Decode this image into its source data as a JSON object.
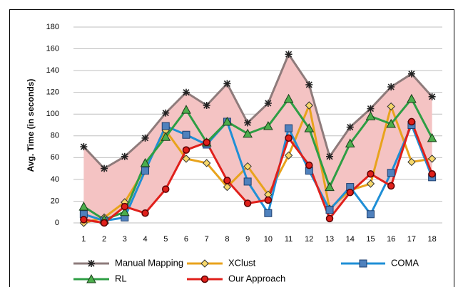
{
  "chart_data": {
    "type": "line",
    "y_label": "Avg. Time (in seconds)",
    "categories": [
      "1",
      "2",
      "3",
      "4",
      "5",
      "6",
      "7",
      "8",
      "9",
      "10",
      "11",
      "12",
      "13",
      "14",
      "15",
      "16",
      "17",
      "18"
    ],
    "ylim": [
      0,
      180
    ],
    "yticks": [
      0,
      20,
      40,
      60,
      80,
      100,
      120,
      140,
      160,
      180
    ],
    "grid": true,
    "band_fill": "#f4c3c3",
    "series": [
      {
        "name": "Manual Mapping",
        "color": "#8e7b7b",
        "marker": "star",
        "marker_fill": "#222222",
        "values": [
          70,
          50,
          61,
          78,
          101,
          120,
          108,
          128,
          92,
          110,
          155,
          127,
          61,
          88,
          105,
          125,
          137,
          116
        ]
      },
      {
        "name": "XClust",
        "color": "#e8a31c",
        "marker": "diamond",
        "marker_fill": "#f6d86a",
        "values": [
          0,
          5,
          19,
          50,
          85,
          59,
          55,
          33,
          52,
          26,
          62,
          108,
          13,
          30,
          36,
          107,
          56,
          59
        ]
      },
      {
        "name": "COMA",
        "color": "#1f8fd6",
        "marker": "square",
        "marker_fill": "#4f81bd",
        "values": [
          8,
          2,
          5,
          48,
          89,
          81,
          72,
          93,
          38,
          9,
          87,
          48,
          12,
          33,
          8,
          46,
          90,
          42
        ]
      },
      {
        "name": "RL",
        "color": "#2e9e44",
        "marker": "triangle",
        "marker_fill": "#4cae4c",
        "values": [
          15,
          3,
          10,
          55,
          79,
          104,
          74,
          93,
          82,
          89,
          114,
          87,
          33,
          73,
          98,
          91,
          114,
          78
        ]
      },
      {
        "name": "Our Approach",
        "color": "#e0201b",
        "marker": "circle",
        "marker_fill": "#e0201b",
        "values": [
          3,
          0,
          15,
          9,
          31,
          67,
          74,
          39,
          18,
          21,
          78,
          53,
          4,
          28,
          45,
          34,
          93,
          45
        ]
      }
    ]
  }
}
